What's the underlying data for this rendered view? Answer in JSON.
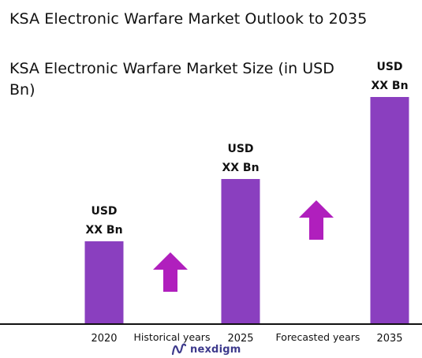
{
  "header": {
    "title": "KSA Electronic Warfare Market Outlook to 2035",
    "subtitle": "KSA Electronic Warfare Market Size (in USD Bn)"
  },
  "chart_data": {
    "type": "bar",
    "categories": [
      "2020",
      "2025",
      "2035"
    ],
    "values": [
      105,
      184,
      288
    ],
    "bar_labels": [
      [
        "USD",
        "XX Bn"
      ],
      [
        "USD",
        "XX Bn"
      ],
      [
        "USD",
        "XX Bn"
      ]
    ],
    "period_labels": [
      "Historical years",
      "Forecasted years"
    ],
    "xlabel": "",
    "ylabel": "",
    "ylim": [
      0,
      300
    ],
    "grid": false,
    "legend": "none",
    "colors": {
      "bar": "#8a3fbf",
      "arrow": "#b01fbd",
      "axis": "#111111"
    }
  },
  "brand": {
    "logo_text": "nexdigm",
    "logo_icon": "nexdigm-wave-icon",
    "color": "#3d3a8c"
  }
}
